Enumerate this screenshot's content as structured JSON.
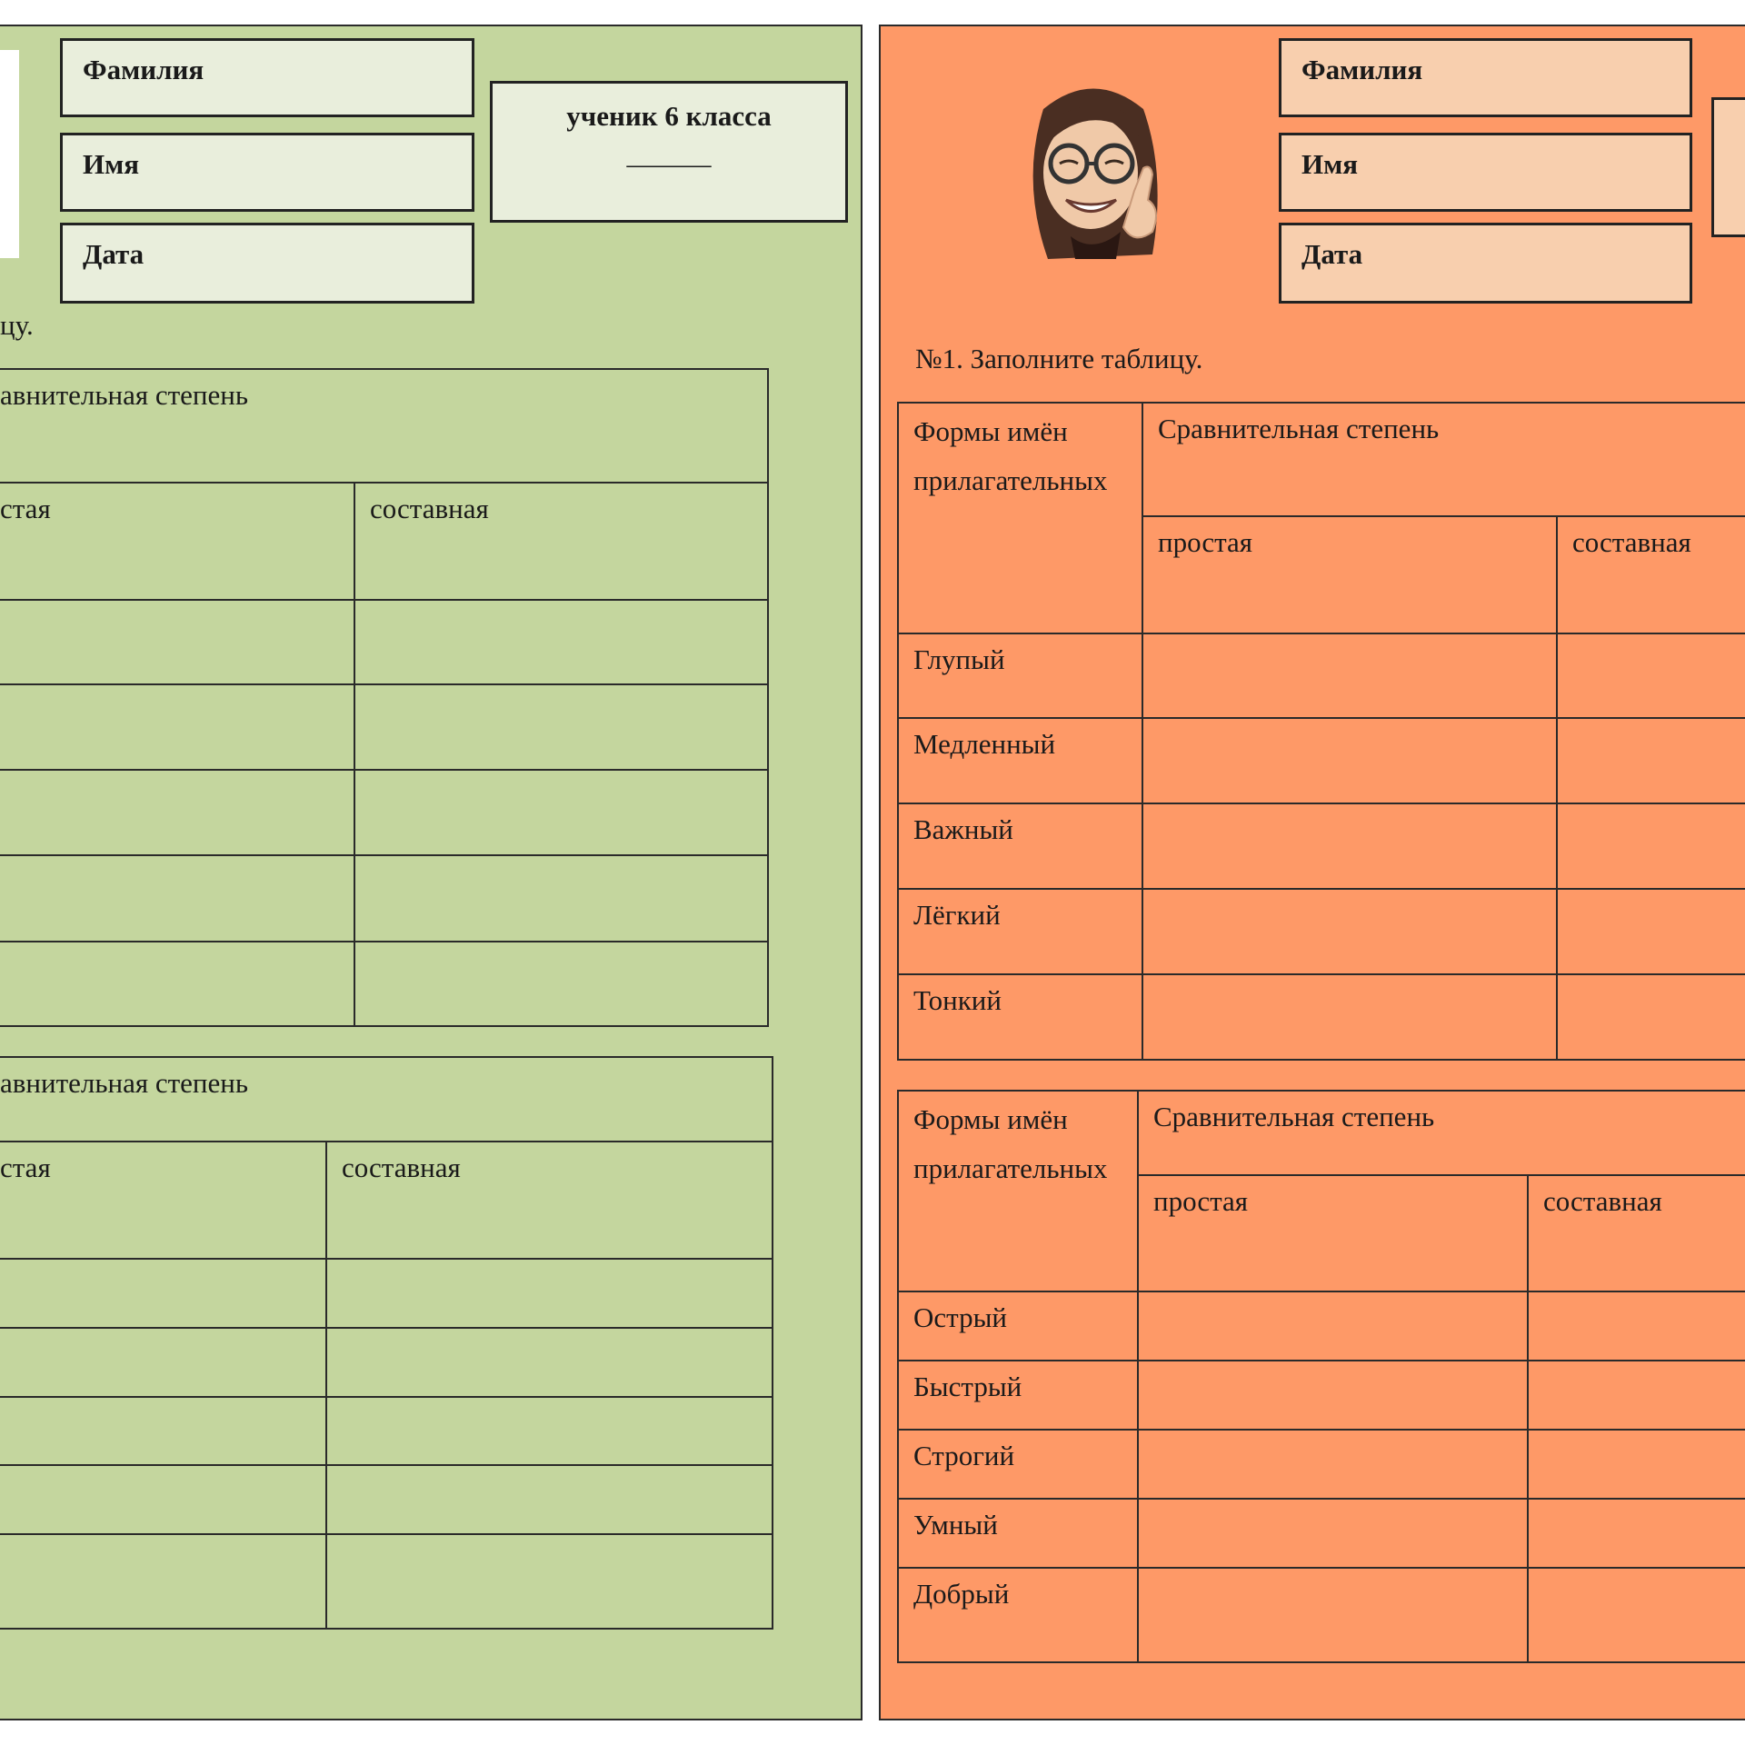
{
  "colors": {
    "green_panel": "#c4d69e",
    "green_box": "#e9eedc",
    "orange_panel": "#fe9967",
    "orange_box": "#f8cfae"
  },
  "left_card": {
    "fields": [
      "Фамилия",
      "Имя",
      "Дата"
    ],
    "grade_box": {
      "line1": "ученик 6 класса",
      "line2": "______"
    },
    "task_fragment": "цу.",
    "table1": {
      "header_fragment": "авнительная степень",
      "col_simple": "стая",
      "col_compound": "составная"
    },
    "table2": {
      "header_fragment": "авнительная степень",
      "col_simple": "стая",
      "col_compound": "составная"
    }
  },
  "right_card": {
    "avatar": "memoji-girl-fingers-crossed",
    "fields": [
      "Фамилия",
      "Имя",
      "Дата"
    ],
    "task": "№1. Заполните таблицу.",
    "table1": {
      "col_forms": "Формы имён прилагательных",
      "col_degree": "Сравнительная степень",
      "col_simple": "простая",
      "col_compound": "составная",
      "rows": [
        "Глупый",
        "Медленный",
        "Важный",
        "Лёгкий",
        "Тонкий"
      ]
    },
    "table2": {
      "col_forms": "Формы имён прилагательных",
      "col_degree": "Сравнительная степень",
      "col_simple": "простая",
      "col_compound": "составная",
      "rows": [
        "Острый",
        "Быстрый",
        "Строгий",
        "Умный",
        "Добрый"
      ]
    }
  }
}
